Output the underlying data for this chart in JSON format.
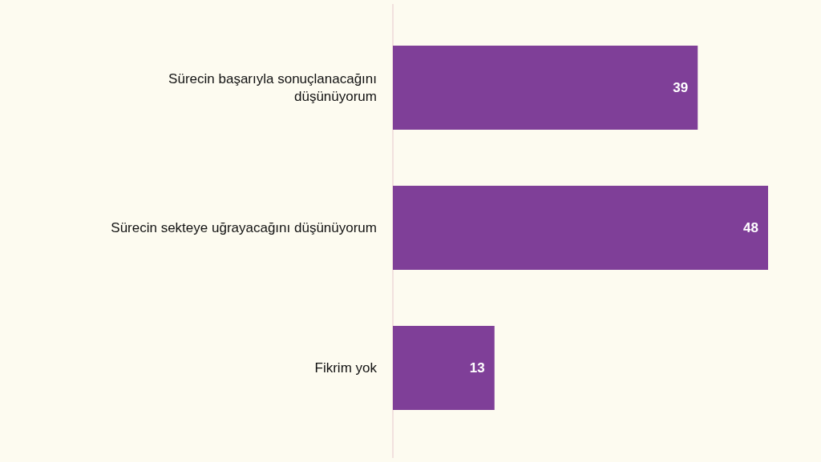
{
  "chart_data": {
    "type": "bar",
    "orientation": "horizontal",
    "categories": [
      "Sürecin başarıyla sonuçlanacağını düşünüyorum",
      "Sürecin sekteye uğrayacağını düşünüyorum",
      "Fikrim yok"
    ],
    "values": [
      39,
      48,
      13
    ],
    "color": "#7f3f98",
    "data_labels": true
  }
}
